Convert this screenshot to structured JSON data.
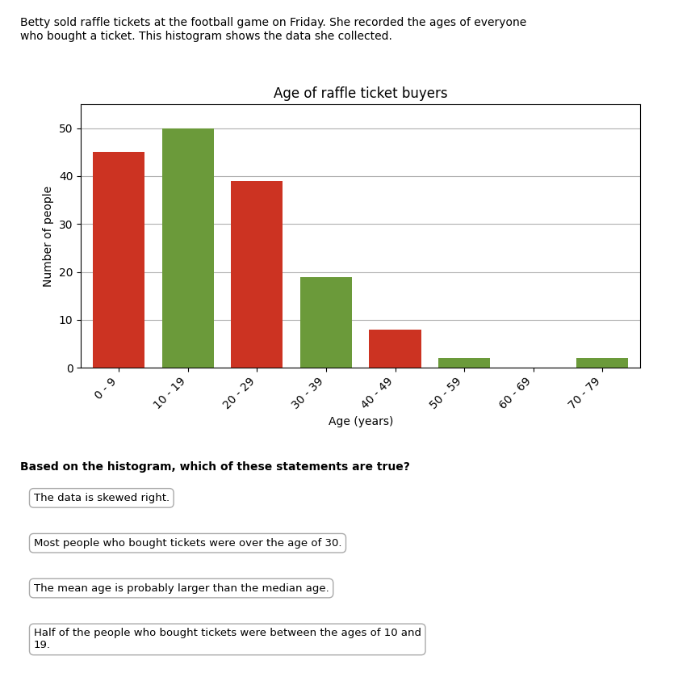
{
  "chart_data": {
    "type": "bar",
    "title": "Age of raffle ticket buyers",
    "xlabel": "Age (years)",
    "ylabel": "Number of people",
    "categories": [
      "0 - 9",
      "10 - 19",
      "20 - 29",
      "30 - 39",
      "40 - 49",
      "50 - 59",
      "60 - 69",
      "70 - 79"
    ],
    "values": [
      45,
      50,
      39,
      19,
      8,
      2,
      0,
      2
    ],
    "colors": [
      "#cc3322",
      "#6b9a3a",
      "#cc3322",
      "#6b9a3a",
      "#cc3322",
      "#6b9a3a",
      "#6b9a3a",
      "#6b9a3a"
    ],
    "ylim": [
      0,
      55
    ],
    "yticks": [
      0,
      10,
      20,
      30,
      40,
      50
    ],
    "grid": true,
    "annotations": [
      "Betty sold raffle tickets at the football game on Friday. She recorded the ages of everyone\nwho bought a ticket. This histogram shows the data she collected.",
      "Based on the histogram, which of these statements are true?",
      "The data is skewed right.",
      "Most people who bought tickets were over the age of 30.",
      "The mean age is probably larger than the median age.",
      "Half of the people who bought tickets were between the ages of 10 and\n19."
    ]
  }
}
